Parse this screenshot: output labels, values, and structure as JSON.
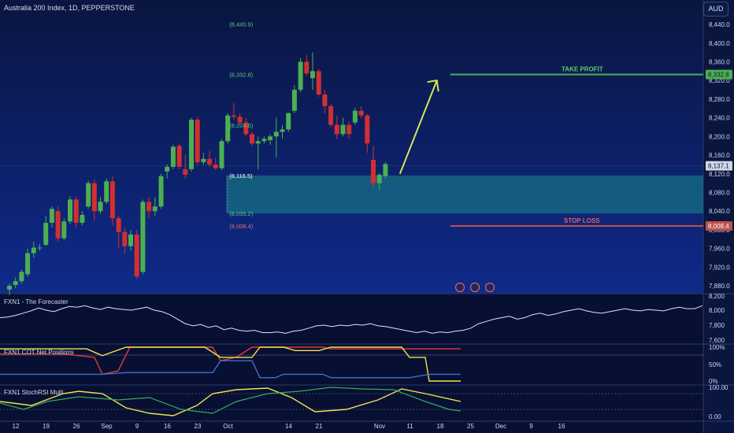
{
  "header": {
    "symbol": "Australia 200 Index, 1D, PEPPERSTONE",
    "currency": "AUD"
  },
  "colors": {
    "bull": "#4caf50",
    "bear": "#d32f2f",
    "zone": "#1a8a8a",
    "tp": "#4caf50",
    "sl": "#c0504d",
    "arrow": "#d4e85a",
    "forecast": "#dfe3ee",
    "red_line": "#e53935",
    "yellow_line": "#f3e24c",
    "blue_line": "#3f6fc8"
  },
  "chart_data": {
    "type": "candlestick",
    "y_ticks": [
      "8,440.0",
      "8,400.0",
      "8,360.0",
      "8,320.0",
      "8,280.0",
      "8,240.0",
      "8,200.0",
      "8,160.0",
      "8,120.0",
      "8,080.0",
      "8,040.0",
      "8,000.0",
      "7,960.0",
      "7,920.0",
      "7,880.0"
    ],
    "y_tick_values": [
      8440,
      8400,
      8360,
      8320,
      8280,
      8240,
      8200,
      8160,
      8120,
      8080,
      8040,
      8000,
      7960,
      7920,
      7880
    ],
    "ylim": [
      7865,
      8462
    ],
    "x_ticks": [
      "12",
      "19",
      "26",
      "Sep",
      "9",
      "16",
      "23",
      "Oct",
      "14",
      "21",
      "Nov",
      "11",
      "18",
      "25",
      "Dec",
      "9",
      "16"
    ],
    "x_tick_index": [
      0,
      5,
      10,
      15,
      20,
      25,
      30,
      35,
      45,
      50,
      60,
      65,
      70,
      75,
      80,
      85,
      90
    ],
    "candles": [
      {
        "o": 7872,
        "h": 7885,
        "l": 7860,
        "c": 7880
      },
      {
        "o": 7882,
        "h": 7898,
        "l": 7875,
        "c": 7890
      },
      {
        "o": 7890,
        "h": 7915,
        "l": 7885,
        "c": 7910
      },
      {
        "o": 7905,
        "h": 7960,
        "l": 7900,
        "c": 7950
      },
      {
        "o": 7950,
        "h": 7975,
        "l": 7940,
        "c": 7962
      },
      {
        "o": 7962,
        "h": 7970,
        "l": 7955,
        "c": 7962
      },
      {
        "o": 7968,
        "h": 8030,
        "l": 7965,
        "c": 8015
      },
      {
        "o": 8015,
        "h": 8050,
        "l": 8005,
        "c": 8045
      },
      {
        "o": 8040,
        "h": 8050,
        "l": 7975,
        "c": 7982
      },
      {
        "o": 7982,
        "h": 8025,
        "l": 7978,
        "c": 8018
      },
      {
        "o": 8018,
        "h": 8072,
        "l": 8012,
        "c": 8065
      },
      {
        "o": 8065,
        "h": 8070,
        "l": 8005,
        "c": 8015
      },
      {
        "o": 8015,
        "h": 8040,
        "l": 8010,
        "c": 8032
      },
      {
        "o": 8050,
        "h": 8105,
        "l": 8045,
        "c": 8100
      },
      {
        "o": 8100,
        "h": 8108,
        "l": 8020,
        "c": 8040
      },
      {
        "o": 8040,
        "h": 8070,
        "l": 8035,
        "c": 8060
      },
      {
        "o": 8060,
        "h": 8110,
        "l": 8055,
        "c": 8104
      },
      {
        "o": 8104,
        "h": 8115,
        "l": 8010,
        "c": 8025
      },
      {
        "o": 8025,
        "h": 8030,
        "l": 7960,
        "c": 7995
      },
      {
        "o": 7995,
        "h": 8005,
        "l": 7950,
        "c": 7965
      },
      {
        "o": 7965,
        "h": 8000,
        "l": 7955,
        "c": 7990
      },
      {
        "o": 7990,
        "h": 8000,
        "l": 7895,
        "c": 7900
      },
      {
        "o": 7910,
        "h": 8065,
        "l": 7905,
        "c": 8060
      },
      {
        "o": 8060,
        "h": 8070,
        "l": 8025,
        "c": 8040
      },
      {
        "o": 8040,
        "h": 8070,
        "l": 8030,
        "c": 8050
      },
      {
        "o": 8050,
        "h": 8120,
        "l": 8045,
        "c": 8115
      },
      {
        "o": 8125,
        "h": 8140,
        "l": 8110,
        "c": 8135
      },
      {
        "o": 8135,
        "h": 8182,
        "l": 8130,
        "c": 8178
      },
      {
        "o": 8180,
        "h": 8185,
        "l": 8130,
        "c": 8135
      },
      {
        "o": 8130,
        "h": 8160,
        "l": 8110,
        "c": 8118
      },
      {
        "o": 8130,
        "h": 8240,
        "l": 8125,
        "c": 8236
      },
      {
        "o": 8236,
        "h": 8242,
        "l": 8140,
        "c": 8145
      },
      {
        "o": 8145,
        "h": 8165,
        "l": 8140,
        "c": 8152
      },
      {
        "o": 8152,
        "h": 8170,
        "l": 8135,
        "c": 8140
      },
      {
        "o": 8140,
        "h": 8155,
        "l": 8128,
        "c": 8132
      },
      {
        "o": 8132,
        "h": 8195,
        "l": 8128,
        "c": 8190
      },
      {
        "o": 8190,
        "h": 8250,
        "l": 8185,
        "c": 8245
      },
      {
        "o": 8245,
        "h": 8272,
        "l": 8236,
        "c": 8242
      },
      {
        "o": 8242,
        "h": 8250,
        "l": 8225,
        "c": 8230
      },
      {
        "o": 8230,
        "h": 8240,
        "l": 8200,
        "c": 8205
      },
      {
        "o": 8205,
        "h": 8210,
        "l": 8180,
        "c": 8185
      },
      {
        "o": 8185,
        "h": 8200,
        "l": 8130,
        "c": 8190
      },
      {
        "o": 8190,
        "h": 8200,
        "l": 8185,
        "c": 8195
      },
      {
        "o": 8192,
        "h": 8205,
        "l": 8182,
        "c": 8200
      },
      {
        "o": 8200,
        "h": 8240,
        "l": 8155,
        "c": 8210
      },
      {
        "o": 8210,
        "h": 8225,
        "l": 8195,
        "c": 8215
      },
      {
        "o": 8215,
        "h": 8252,
        "l": 8210,
        "c": 8250
      },
      {
        "o": 8255,
        "h": 8310,
        "l": 8250,
        "c": 8300
      },
      {
        "o": 8300,
        "h": 8368,
        "l": 8295,
        "c": 8360
      },
      {
        "o": 8360,
        "h": 8375,
        "l": 8330,
        "c": 8335
      },
      {
        "o": 8325,
        "h": 8380,
        "l": 8300,
        "c": 8340
      },
      {
        "o": 8340,
        "h": 8345,
        "l": 8285,
        "c": 8290
      },
      {
        "o": 8290,
        "h": 8300,
        "l": 8250,
        "c": 8265
      },
      {
        "o": 8265,
        "h": 8270,
        "l": 8220,
        "c": 8225
      },
      {
        "o": 8225,
        "h": 8245,
        "l": 8195,
        "c": 8205
      },
      {
        "o": 8205,
        "h": 8240,
        "l": 8200,
        "c": 8225
      },
      {
        "o": 8225,
        "h": 8232,
        "l": 8195,
        "c": 8205
      },
      {
        "o": 8230,
        "h": 8262,
        "l": 8225,
        "c": 8255
      },
      {
        "o": 8255,
        "h": 8265,
        "l": 8240,
        "c": 8245
      },
      {
        "o": 8245,
        "h": 8248,
        "l": 8165,
        "c": 8185
      },
      {
        "o": 8150,
        "h": 8180,
        "l": 8090,
        "c": 8100
      },
      {
        "o": 8100,
        "h": 8122,
        "l": 8085,
        "c": 8118
      },
      {
        "o": 8115,
        "h": 8145,
        "l": 8110,
        "c": 8141
      }
    ],
    "levels": {
      "take_profit": {
        "label": "TAKE PROFIT",
        "value": 8332.8,
        "tag": "8,332.8"
      },
      "stop_loss": {
        "label": "STOP LOSS",
        "value": 8008.4,
        "tag": "8,008.4"
      },
      "current": {
        "value": 8137.1,
        "tag": "8,137.1"
      },
      "zone": {
        "top": 8116.5,
        "bottom": 8035.2
      }
    },
    "annotations": [
      {
        "text": "(8,440.9)",
        "value": 8440.9
      },
      {
        "text": "(8,332.8)",
        "value": 8332.8
      },
      {
        "text": "(8,224.6)",
        "value": 8224.6
      },
      {
        "text": "(8,116.5)",
        "value": 8116.5
      },
      {
        "text": "(8,035.2)",
        "value": 8035.2
      },
      {
        "text": "(8,008.4)",
        "value": 8008.4
      }
    ],
    "indicators": [
      {
        "title": "FXN1 - The Forecaster",
        "ticks": [
          "8,200",
          "8,000",
          "7,800",
          "7,600"
        ]
      },
      {
        "title": "FXN1 COT Net Positions",
        "ticks": [
          "100%",
          "50%",
          "0%"
        ]
      },
      {
        "title": "FXN1 StochRSI Multi",
        "ticks": [
          "100.00",
          "0.00"
        ]
      }
    ]
  }
}
